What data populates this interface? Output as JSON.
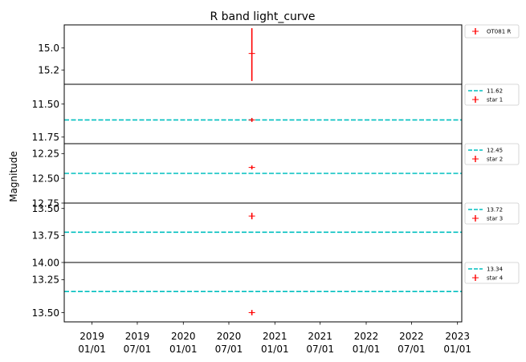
{
  "chart_data": {
    "type": "scatter",
    "title": "R band light_curve",
    "ylabel": "Magnitude",
    "xlabel": "",
    "x_axis": {
      "range": [
        "2018-09-12",
        "2023-01-18"
      ],
      "ticks": [
        {
          "date": "2019-01-01",
          "label": [
            "2019",
            "01/01"
          ]
        },
        {
          "date": "2019-07-01",
          "label": [
            "2019",
            "07/01"
          ]
        },
        {
          "date": "2020-01-01",
          "label": [
            "2020",
            "01/01"
          ]
        },
        {
          "date": "2020-07-01",
          "label": [
            "2020",
            "07/01"
          ]
        },
        {
          "date": "2021-01-01",
          "label": [
            "2021",
            "01/01"
          ]
        },
        {
          "date": "2021-07-01",
          "label": [
            "2021",
            "07/01"
          ]
        },
        {
          "date": "2022-01-01",
          "label": [
            "2022",
            "01/01"
          ]
        },
        {
          "date": "2022-07-01",
          "label": [
            "2022",
            "07/01"
          ]
        },
        {
          "date": "2023-01-01",
          "label": [
            "2023",
            "01/01"
          ]
        }
      ]
    },
    "panels": [
      {
        "ylim": [
          15.33,
          14.79
        ],
        "yticks": [
          "15.0",
          "15.2"
        ],
        "ytick_values": [
          15.0,
          15.2
        ],
        "points": [
          {
            "x": "2020-10-01",
            "y": 15.05,
            "yerr_low": 14.82,
            "yerr_high": 15.3
          }
        ],
        "reference": null,
        "legend": [
          {
            "kind": "point",
            "label": "OT081 R"
          }
        ]
      },
      {
        "ylim": [
          11.8,
          11.35
        ],
        "yticks": [
          "11.50",
          "11.75"
        ],
        "ytick_values": [
          11.5,
          11.75
        ],
        "points": [
          {
            "x": "2020-10-01",
            "y": 11.62,
            "yerr_low": 11.605,
            "yerr_high": 11.635
          }
        ],
        "reference": 11.62,
        "legend": [
          {
            "kind": "line",
            "label": "11.62"
          },
          {
            "kind": "point",
            "label": "star 1"
          }
        ]
      },
      {
        "ylim": [
          12.75,
          12.15
        ],
        "yticks": [
          "12.25",
          "12.50",
          "12.75"
        ],
        "ytick_values": [
          12.25,
          12.5,
          12.75
        ],
        "points": [
          {
            "x": "2020-10-01",
            "y": 12.39,
            "yerr_low": 12.37,
            "yerr_high": 12.41
          }
        ],
        "reference": 12.45,
        "legend": [
          {
            "kind": "line",
            "label": "12.45"
          },
          {
            "kind": "point",
            "label": "star 2"
          }
        ]
      },
      {
        "ylim": [
          14.0,
          13.45
        ],
        "yticks": [
          "13.50",
          "13.75",
          "14.00"
        ],
        "ytick_values": [
          13.5,
          13.75,
          14.0
        ],
        "points": [
          {
            "x": "2020-10-01",
            "y": 13.57,
            "yerr_low": 13.54,
            "yerr_high": 13.6
          }
        ],
        "reference": 13.72,
        "legend": [
          {
            "kind": "line",
            "label": "13.72"
          },
          {
            "kind": "point",
            "label": "star 3"
          }
        ]
      },
      {
        "ylim": [
          13.57,
          13.12
        ],
        "yticks": [
          "13.25",
          "13.50"
        ],
        "ytick_values": [
          13.25,
          13.5
        ],
        "points": [
          {
            "x": "2020-10-01",
            "y": 13.5,
            "yerr_low": 13.48,
            "yerr_high": 13.52
          }
        ],
        "reference": 13.34,
        "legend": [
          {
            "kind": "line",
            "label": "13.34"
          },
          {
            "kind": "point",
            "label": "star 4"
          }
        ]
      }
    ],
    "colors": {
      "points": "#ff0000",
      "reference": "#00bfbf",
      "axes": "#000000"
    },
    "grid": false,
    "legend_placement": "outside-right"
  }
}
